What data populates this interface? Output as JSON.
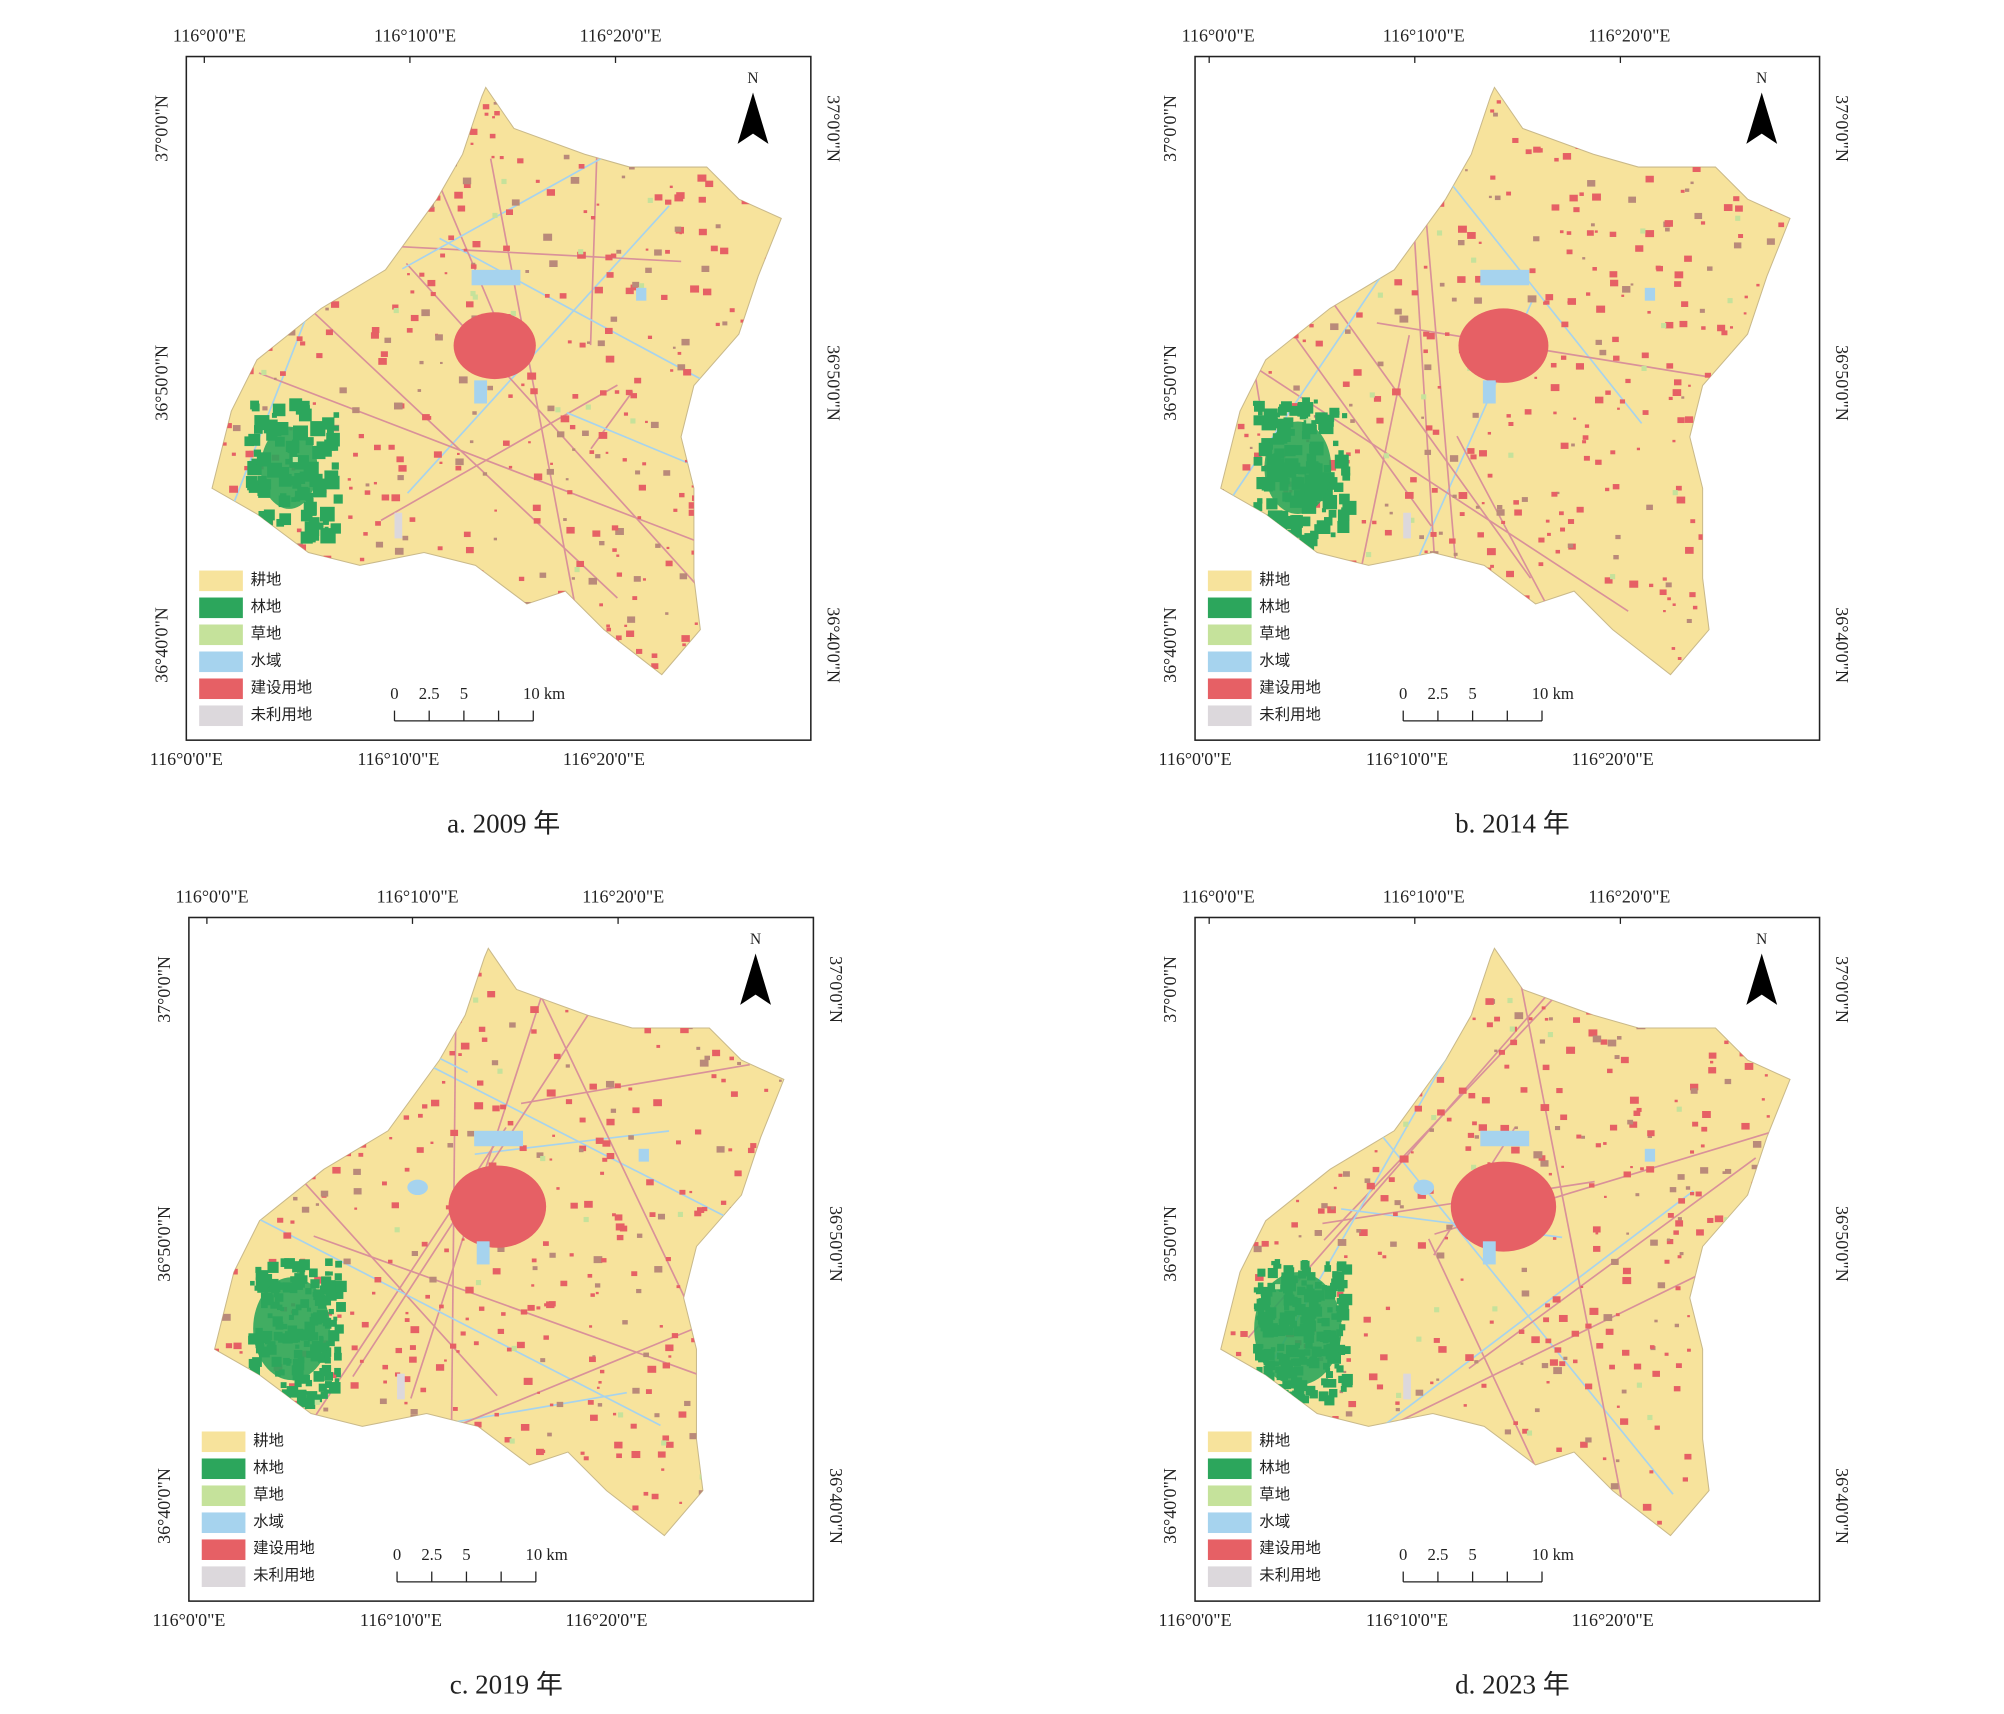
{
  "panels": [
    {
      "caption": "a. 2009 年"
    },
    {
      "caption": "b. 2014 年"
    },
    {
      "caption": "c. 2019 年"
    },
    {
      "caption": "d. 2023 年"
    }
  ],
  "coordinates": {
    "longitude": [
      "116°0'0\"E",
      "116°10'0\"E",
      "116°20'0\"E"
    ],
    "latitude": [
      "37°0'0\"N",
      "36°50'0\"N",
      "36°40'0\"N"
    ]
  },
  "north_arrow": "N",
  "scale_bar": [
    "0",
    "2.5",
    "5",
    "10 km"
  ],
  "legend": [
    {
      "label": "耕地",
      "color": "#f7e39c"
    },
    {
      "label": "林地",
      "color": "#2ca65c"
    },
    {
      "label": "草地",
      "color": "#c5e29b"
    },
    {
      "label": "水域",
      "color": "#a6d3ee"
    },
    {
      "label": "建设用地",
      "color": "#e66065"
    },
    {
      "label": "未利用地",
      "color": "#dcd8dc"
    }
  ]
}
